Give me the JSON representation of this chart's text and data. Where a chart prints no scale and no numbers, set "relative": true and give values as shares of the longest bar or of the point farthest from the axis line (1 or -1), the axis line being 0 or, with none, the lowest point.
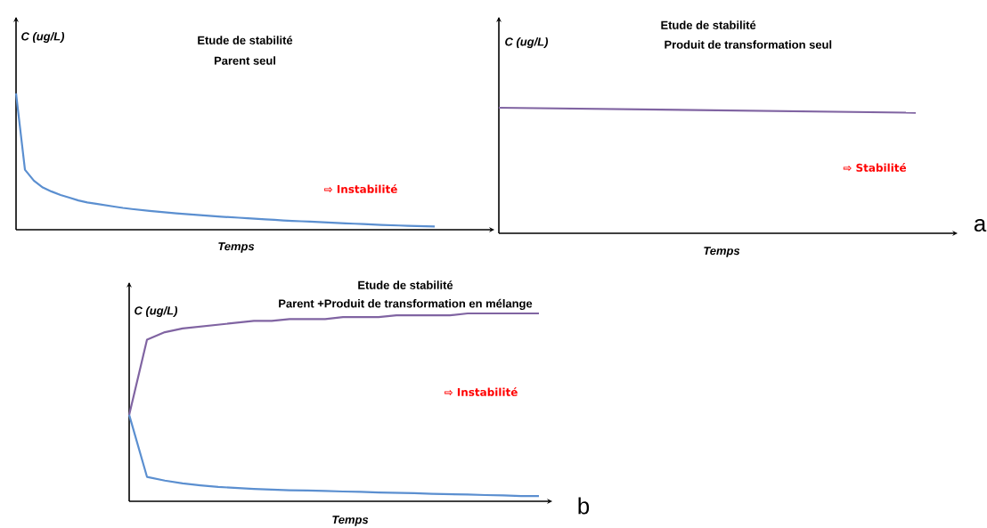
{
  "chart_data": [
    {
      "type": "line",
      "title": "Etude de stabilité",
      "subtitle": "Parent seul",
      "xlabel": "Temps",
      "ylabel": "C (ug/L)",
      "relative": true,
      "annotations": [
        "⇨ Instabilité"
      ],
      "categories": [
        null,
        null,
        null,
        null,
        null,
        null,
        null,
        null,
        null,
        null,
        null,
        null,
        null,
        null,
        null,
        null,
        null,
        null,
        null,
        null,
        null,
        null,
        null,
        null,
        null,
        null,
        null,
        null,
        null,
        null,
        null,
        null,
        null,
        null,
        null,
        null,
        null,
        null,
        null,
        null,
        null,
        null,
        null,
        null,
        null,
        null,
        null,
        null
      ],
      "series": [
        {
          "color": "#5b8fd0",
          "values": [
            1.0,
            0.44,
            0.36,
            0.31,
            0.28,
            0.255,
            0.235,
            0.215,
            0.2,
            0.19,
            0.18,
            0.17,
            0.16,
            0.152,
            0.145,
            0.138,
            0.132,
            0.126,
            0.12,
            0.115,
            0.11,
            0.105,
            0.1,
            0.096,
            0.092,
            0.088,
            0.084,
            0.08,
            0.076,
            0.072,
            0.068,
            0.065,
            0.062,
            0.059,
            0.056,
            0.053,
            0.05,
            0.047,
            0.044,
            0.041,
            0.038,
            0.035,
            0.033,
            0.031,
            0.029,
            0.027,
            0.025,
            0.023
          ]
        }
      ]
    },
    {
      "type": "line",
      "title": "Etude de stabilité",
      "subtitle": "Produit de transformation seul",
      "xlabel": "Temps",
      "ylabel": "C (ug/L)",
      "relative": true,
      "annotations": [
        "⇨ Stabilité",
        "a"
      ],
      "categories": [
        null,
        null
      ],
      "series": [
        {
          "color": "#8064a2",
          "values": [
            1.0,
            0.96
          ]
        }
      ]
    },
    {
      "type": "line",
      "title": "Etude de stabilité",
      "subtitle": "Parent +Produit de transformation en mélange",
      "xlabel": "Temps",
      "ylabel": "C (ug/L)",
      "relative": true,
      "annotations": [
        "⇨ Instabilité",
        "b"
      ],
      "categories": [
        null,
        null,
        null,
        null,
        null,
        null,
        null,
        null,
        null,
        null,
        null,
        null,
        null,
        null,
        null,
        null,
        null,
        null,
        null,
        null,
        null,
        null,
        null,
        null
      ],
      "series": [
        {
          "color": "#8064a2",
          "values": [
            0.46,
            0.86,
            0.9,
            0.92,
            0.93,
            0.94,
            0.95,
            0.96,
            0.96,
            0.97,
            0.97,
            0.97,
            0.98,
            0.98,
            0.98,
            0.99,
            0.99,
            0.99,
            0.99,
            1.0,
            1.0,
            1.0,
            1.0,
            1.0
          ]
        },
        {
          "color": "#5b8fd0",
          "values": [
            0.46,
            0.13,
            0.11,
            0.095,
            0.085,
            0.076,
            0.071,
            0.066,
            0.062,
            0.059,
            0.057,
            0.055,
            0.052,
            0.05,
            0.047,
            0.045,
            0.043,
            0.04,
            0.038,
            0.036,
            0.033,
            0.031,
            0.028,
            0.028
          ]
        }
      ]
    }
  ]
}
